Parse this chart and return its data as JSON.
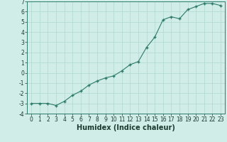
{
  "x": [
    0,
    1,
    2,
    3,
    4,
    5,
    6,
    7,
    8,
    9,
    10,
    11,
    12,
    13,
    14,
    15,
    16,
    17,
    18,
    19,
    20,
    21,
    22,
    23
  ],
  "y": [
    -3.0,
    -3.0,
    -3.0,
    -3.2,
    -2.8,
    -2.2,
    -1.8,
    -1.2,
    -0.8,
    -0.5,
    -0.3,
    0.2,
    0.8,
    1.1,
    2.5,
    3.5,
    5.2,
    5.5,
    5.3,
    6.2,
    6.5,
    6.8,
    6.8,
    6.6
  ],
  "xlabel": "Humidex (Indice chaleur)",
  "ylim": [
    -4,
    7
  ],
  "xlim": [
    -0.5,
    23.5
  ],
  "yticks": [
    -4,
    -3,
    -2,
    -1,
    0,
    1,
    2,
    3,
    4,
    5,
    6,
    7
  ],
  "xticks": [
    0,
    1,
    2,
    3,
    4,
    5,
    6,
    7,
    8,
    9,
    10,
    11,
    12,
    13,
    14,
    15,
    16,
    17,
    18,
    19,
    20,
    21,
    22,
    23
  ],
  "line_color": "#2d7a6a",
  "marker_color": "#2d7a6a",
  "bg_color": "#d0ede8",
  "grid_color": "#b0d8cf",
  "tick_label_fontsize": 5.5,
  "xlabel_fontsize": 7.0
}
